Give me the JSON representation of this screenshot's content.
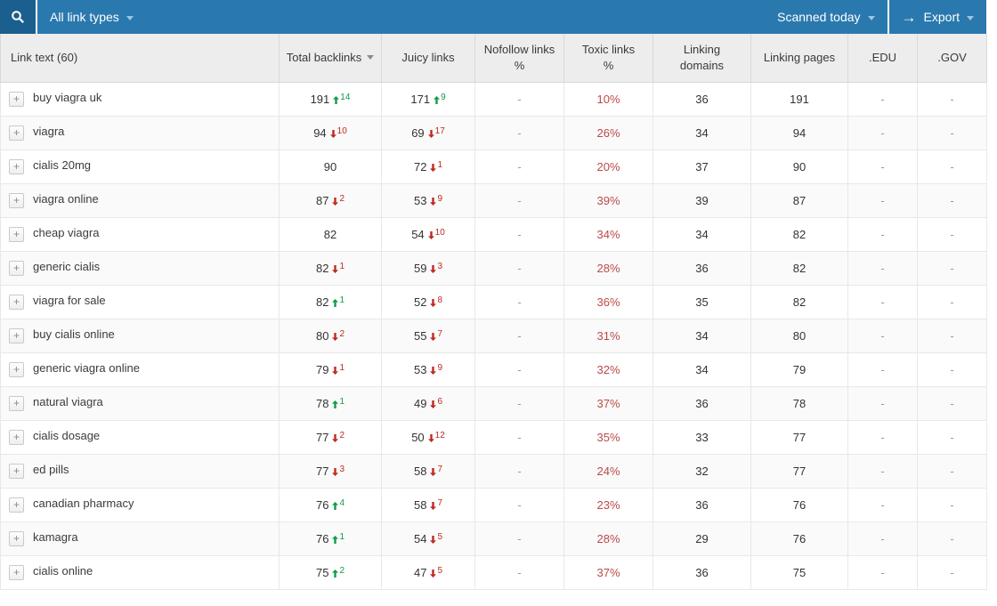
{
  "toolbar": {
    "filter": {
      "label": "All link types"
    },
    "scan_status": {
      "label": "Scanned today"
    },
    "export": {
      "label": "Export"
    }
  },
  "colors": {
    "toolbar_blue": "#2a79ae",
    "search_button_blue": "#1a5f8d",
    "delta_up_green": "#0e9c49",
    "delta_down_red": "#bb2b20",
    "toxic_red": "#b94a48",
    "header_bg": "#ededed"
  },
  "table": {
    "columns": [
      {
        "label": "Link text (60)"
      },
      {
        "label": "Total backlinks",
        "sorted": "desc"
      },
      {
        "label": "Juicy links"
      },
      {
        "label": "Nofollow links\n%"
      },
      {
        "label": "Toxic links\n%"
      },
      {
        "label": "Linking\ndomains"
      },
      {
        "label": "Linking pages"
      },
      {
        "label": ".EDU"
      },
      {
        "label": ".GOV"
      }
    ],
    "rows": [
      {
        "link_text": "buy viagra uk",
        "total": {
          "value": "191",
          "delta": "14",
          "dir": "up"
        },
        "juicy": {
          "value": "171",
          "delta": "9",
          "dir": "up"
        },
        "nofollow_pct": "-",
        "toxic_pct": "10%",
        "linking_domains": "36",
        "linking_pages": "191",
        "edu": "-",
        "gov": "-"
      },
      {
        "link_text": "viagra",
        "total": {
          "value": "94",
          "delta": "10",
          "dir": "down"
        },
        "juicy": {
          "value": "69",
          "delta": "17",
          "dir": "down"
        },
        "nofollow_pct": "-",
        "toxic_pct": "26%",
        "linking_domains": "34",
        "linking_pages": "94",
        "edu": "-",
        "gov": "-"
      },
      {
        "link_text": "cialis 20mg",
        "total": {
          "value": "90"
        },
        "juicy": {
          "value": "72",
          "delta": "1",
          "dir": "down"
        },
        "nofollow_pct": "-",
        "toxic_pct": "20%",
        "linking_domains": "37",
        "linking_pages": "90",
        "edu": "-",
        "gov": "-"
      },
      {
        "link_text": "viagra online",
        "total": {
          "value": "87",
          "delta": "2",
          "dir": "down"
        },
        "juicy": {
          "value": "53",
          "delta": "9",
          "dir": "down"
        },
        "nofollow_pct": "-",
        "toxic_pct": "39%",
        "linking_domains": "39",
        "linking_pages": "87",
        "edu": "-",
        "gov": "-"
      },
      {
        "link_text": "cheap viagra",
        "total": {
          "value": "82"
        },
        "juicy": {
          "value": "54",
          "delta": "10",
          "dir": "down"
        },
        "nofollow_pct": "-",
        "toxic_pct": "34%",
        "linking_domains": "34",
        "linking_pages": "82",
        "edu": "-",
        "gov": "-"
      },
      {
        "link_text": "generic cialis",
        "total": {
          "value": "82",
          "delta": "1",
          "dir": "down"
        },
        "juicy": {
          "value": "59",
          "delta": "3",
          "dir": "down"
        },
        "nofollow_pct": "-",
        "toxic_pct": "28%",
        "linking_domains": "36",
        "linking_pages": "82",
        "edu": "-",
        "gov": "-"
      },
      {
        "link_text": "viagra for sale",
        "total": {
          "value": "82",
          "delta": "1",
          "dir": "up"
        },
        "juicy": {
          "value": "52",
          "delta": "8",
          "dir": "down"
        },
        "nofollow_pct": "-",
        "toxic_pct": "36%",
        "linking_domains": "35",
        "linking_pages": "82",
        "edu": "-",
        "gov": "-"
      },
      {
        "link_text": "buy cialis online",
        "total": {
          "value": "80",
          "delta": "2",
          "dir": "down"
        },
        "juicy": {
          "value": "55",
          "delta": "7",
          "dir": "down"
        },
        "nofollow_pct": "-",
        "toxic_pct": "31%",
        "linking_domains": "34",
        "linking_pages": "80",
        "edu": "-",
        "gov": "-"
      },
      {
        "link_text": "generic viagra online",
        "total": {
          "value": "79",
          "delta": "1",
          "dir": "down"
        },
        "juicy": {
          "value": "53",
          "delta": "9",
          "dir": "down"
        },
        "nofollow_pct": "-",
        "toxic_pct": "32%",
        "linking_domains": "34",
        "linking_pages": "79",
        "edu": "-",
        "gov": "-"
      },
      {
        "link_text": "natural viagra",
        "total": {
          "value": "78",
          "delta": "1",
          "dir": "up"
        },
        "juicy": {
          "value": "49",
          "delta": "6",
          "dir": "down"
        },
        "nofollow_pct": "-",
        "toxic_pct": "37%",
        "linking_domains": "36",
        "linking_pages": "78",
        "edu": "-",
        "gov": "-"
      },
      {
        "link_text": "cialis dosage",
        "total": {
          "value": "77",
          "delta": "2",
          "dir": "down"
        },
        "juicy": {
          "value": "50",
          "delta": "12",
          "dir": "down"
        },
        "nofollow_pct": "-",
        "toxic_pct": "35%",
        "linking_domains": "33",
        "linking_pages": "77",
        "edu": "-",
        "gov": "-"
      },
      {
        "link_text": "ed pills",
        "total": {
          "value": "77",
          "delta": "3",
          "dir": "down"
        },
        "juicy": {
          "value": "58",
          "delta": "7",
          "dir": "down"
        },
        "nofollow_pct": "-",
        "toxic_pct": "24%",
        "linking_domains": "32",
        "linking_pages": "77",
        "edu": "-",
        "gov": "-"
      },
      {
        "link_text": "canadian pharmacy",
        "total": {
          "value": "76",
          "delta": "4",
          "dir": "up"
        },
        "juicy": {
          "value": "58",
          "delta": "7",
          "dir": "down"
        },
        "nofollow_pct": "-",
        "toxic_pct": "23%",
        "linking_domains": "36",
        "linking_pages": "76",
        "edu": "-",
        "gov": "-"
      },
      {
        "link_text": "kamagra",
        "total": {
          "value": "76",
          "delta": "1",
          "dir": "up"
        },
        "juicy": {
          "value": "54",
          "delta": "5",
          "dir": "down"
        },
        "nofollow_pct": "-",
        "toxic_pct": "28%",
        "linking_domains": "29",
        "linking_pages": "76",
        "edu": "-",
        "gov": "-"
      },
      {
        "link_text": "cialis online",
        "total": {
          "value": "75",
          "delta": "2",
          "dir": "up"
        },
        "juicy": {
          "value": "47",
          "delta": "5",
          "dir": "down"
        },
        "nofollow_pct": "-",
        "toxic_pct": "37%",
        "linking_domains": "36",
        "linking_pages": "75",
        "edu": "-",
        "gov": "-"
      }
    ]
  }
}
